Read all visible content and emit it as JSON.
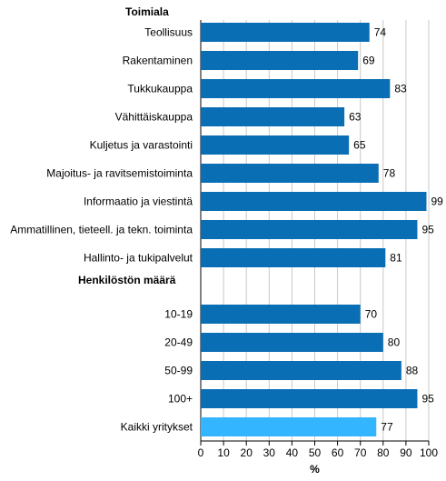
{
  "chart_data": {
    "type": "bar",
    "orientation": "horizontal",
    "title": "",
    "xlabel": "%",
    "ylabel": "",
    "xlim": [
      0,
      100
    ],
    "xticks": [
      0,
      10,
      20,
      30,
      40,
      50,
      60,
      70,
      80,
      90,
      100
    ],
    "grid": "vertical",
    "groups": [
      {
        "heading": "Toimiala",
        "categories": [
          "Teollisuus",
          "Rakentaminen",
          "Tukkukauppa",
          "Vähittäiskauppa",
          "Kuljetus ja varastointi",
          "Majoitus- ja ravitsemistoiminta",
          "Informaatio ja viestintä",
          "Ammatillinen, tieteell. ja tekn. toiminta",
          "Hallinto- ja tukipalvelut"
        ],
        "values": [
          74,
          69,
          83,
          63,
          65,
          78,
          99,
          95,
          81
        ]
      },
      {
        "heading": "Henkilöstön määrä",
        "categories": [
          "10-19",
          "20-49",
          "50-99",
          "100+"
        ],
        "values": [
          70,
          80,
          88,
          95
        ]
      },
      {
        "heading": "",
        "categories": [
          "Kaikki yritykset"
        ],
        "values": [
          77
        ],
        "highlight": true
      }
    ],
    "colors": {
      "bar": "#0a6eb4",
      "highlight": "#33b5ff",
      "grid": "#c8c8c8",
      "axis": "#000000"
    }
  }
}
